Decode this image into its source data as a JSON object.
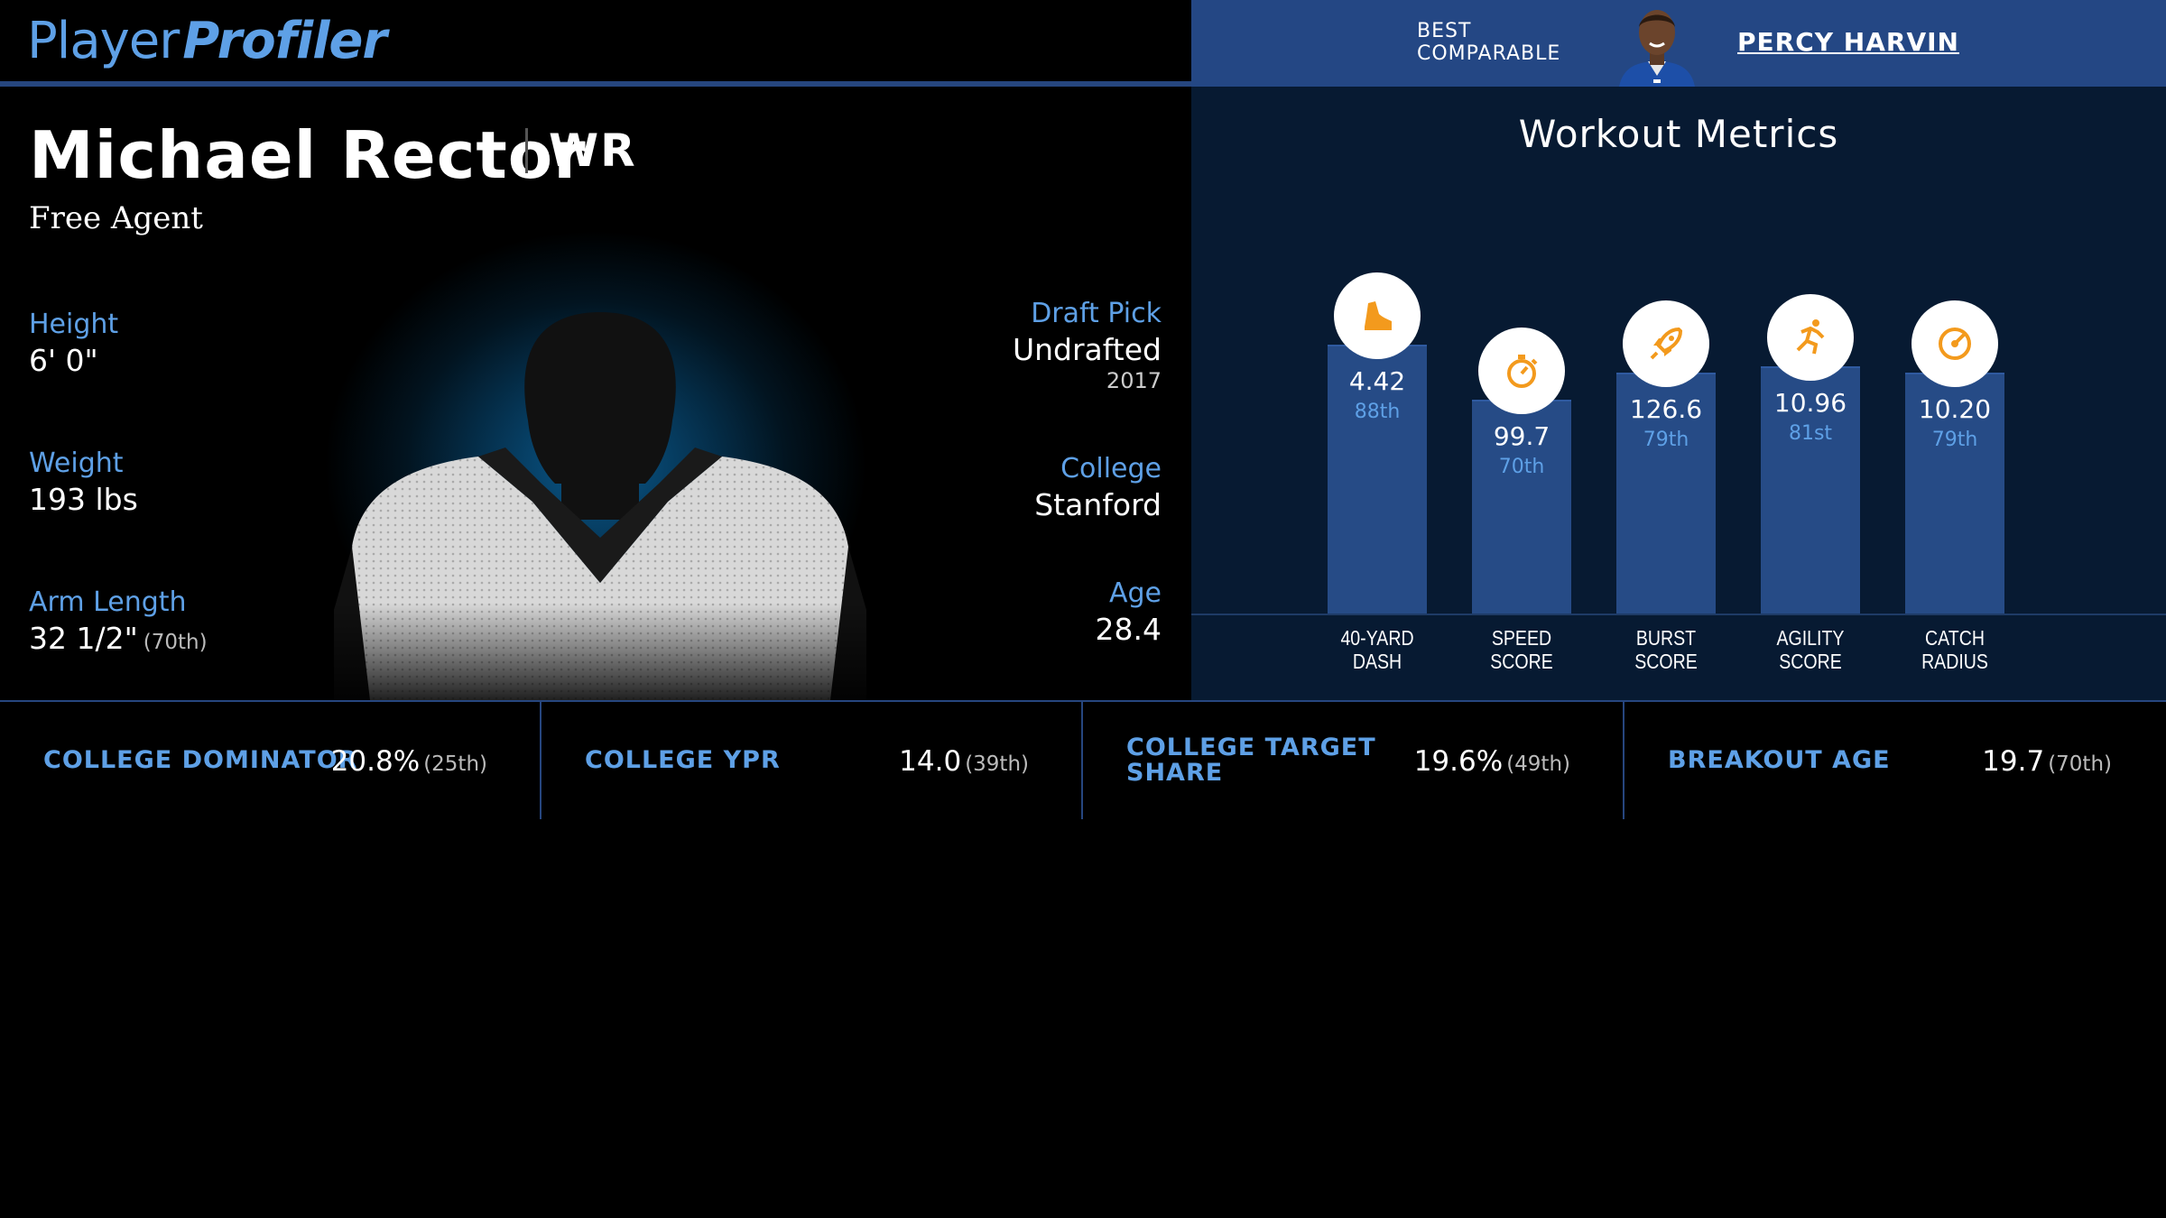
{
  "header": {
    "logo_part1": "Player",
    "logo_part2": "Profiler",
    "comparable_label_line1": "BEST",
    "comparable_label_line2": "COMPARABLE",
    "comparable_name": "PERCY HARVIN"
  },
  "player": {
    "name": "Michael Rector",
    "position": "WR",
    "status": "Free Agent",
    "height_label": "Height",
    "height": "6' 0\"",
    "weight_label": "Weight",
    "weight": "193 lbs",
    "arm_label": "Arm Length",
    "arm": "32 1/2\"",
    "arm_pct": "(70th)",
    "draft_label": "Draft Pick",
    "draft": "Undrafted",
    "draft_year": "2017",
    "college_label": "College",
    "college": "Stanford",
    "age_label": "Age",
    "age": "28.4"
  },
  "workout": {
    "title": "Workout Metrics",
    "icon_color": "#f39a1d"
  },
  "chart_data": {
    "type": "bar",
    "title": "Workout Metrics",
    "categories": [
      "40-YARD DASH",
      "SPEED SCORE",
      "BURST SCORE",
      "AGILITY SCORE",
      "CATCH RADIUS"
    ],
    "values": [
      4.42,
      99.7,
      126.6,
      10.96,
      10.2
    ],
    "percentiles": [
      88,
      70,
      79,
      81,
      79
    ],
    "value_labels": [
      "4.42",
      "99.7",
      "126.6",
      "10.96",
      "10.20"
    ],
    "percentile_labels": [
      "88th",
      "70th",
      "79th",
      "81st",
      "79th"
    ],
    "label_lines": [
      [
        "40-YARD",
        "DASH"
      ],
      [
        "SPEED",
        "SCORE"
      ],
      [
        "BURST",
        "SCORE"
      ],
      [
        "AGILITY",
        "SCORE"
      ],
      [
        "CATCH",
        "RADIUS"
      ]
    ],
    "icons": [
      "shoe-icon",
      "stopwatch-icon",
      "rocket-icon",
      "runner-icon",
      "target-icon"
    ],
    "ylim": [
      0,
      100
    ]
  },
  "metrics": [
    {
      "label": "COLLEGE DOMINATOR",
      "value": "20.8%",
      "pct": "(25th)"
    },
    {
      "label": "COLLEGE YPR",
      "value": "14.0",
      "pct": "(39th)"
    },
    {
      "label": "COLLEGE TARGET SHARE",
      "value": "19.6%",
      "pct": "(49th)"
    },
    {
      "label": "BREAKOUT AGE",
      "value": "19.7",
      "pct": "(70th)"
    }
  ]
}
